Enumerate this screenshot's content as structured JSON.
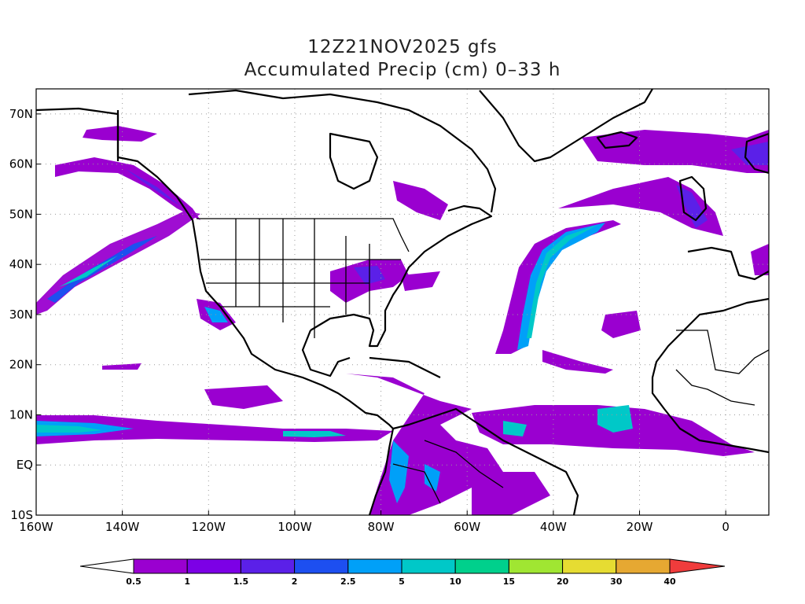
{
  "title_line1": "12Z21NOV2025 gfs",
  "title_line2": "Accumulated Precip (cm) 0–33 h",
  "map": {
    "lon_range": [
      -160,
      10
    ],
    "lat_range": [
      -10,
      75
    ],
    "lat_labels": [
      "70N",
      "60N",
      "50N",
      "40N",
      "30N",
      "20N",
      "10N",
      "EQ",
      "10S"
    ],
    "lat_values": [
      70,
      60,
      50,
      40,
      30,
      20,
      10,
      0,
      -10
    ],
    "lon_labels": [
      "160W",
      "140W",
      "120W",
      "100W",
      "80W",
      "60W",
      "40W",
      "20W",
      "0"
    ],
    "lon_values": [
      -160,
      -140,
      -120,
      -100,
      -80,
      -60,
      -40,
      -20,
      0
    ],
    "grid": "dotted"
  },
  "colorbar": {
    "levels": [
      "0.5",
      "1",
      "1.5",
      "2",
      "2.5",
      "5",
      "10",
      "15",
      "20",
      "30",
      "40"
    ],
    "colors": [
      "#ffffff",
      "#9a00d0",
      "#7c00e6",
      "#5b20e8",
      "#1d4ff0",
      "#00a0f8",
      "#00c8c8",
      "#00d08c",
      "#a0e632",
      "#e6dc32",
      "#e6a832",
      "#f08228",
      "#f03c3c"
    ]
  }
}
